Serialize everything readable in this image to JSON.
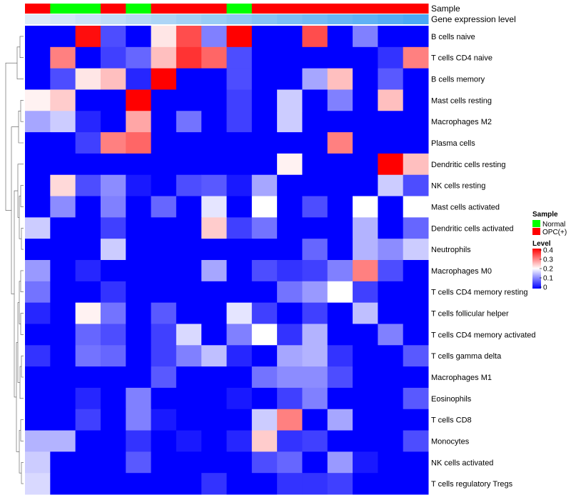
{
  "chart_data": {
    "type": "heatmap",
    "title": "",
    "annotation_labels": {
      "sample": "Sample",
      "expression": "Gene expression level"
    },
    "sample_groups": [
      "OPC(+)",
      "Normal",
      "Normal",
      "OPC(+)",
      "Normal",
      "OPC(+)",
      "OPC(+)",
      "OPC(+)",
      "Normal",
      "OPC(+)",
      "OPC(+)",
      "OPC(+)",
      "OPC(+)",
      "OPC(+)",
      "OPC(+)",
      "OPC(+)"
    ],
    "column_expression_level": [
      0.02,
      0.04,
      0.06,
      0.08,
      0.1,
      0.12,
      0.14,
      0.16,
      0.18,
      0.2,
      0.22,
      0.24,
      0.26,
      0.28,
      0.3,
      0.32
    ],
    "rows": [
      "B cells naive",
      "T cells CD4 naive",
      "B cells memory",
      "Mast cells resting",
      "Macrophages M2",
      "Plasma cells",
      "Dendritic cells resting",
      "NK cells resting",
      "Mast cells activated",
      "Dendritic cells activated",
      "Neutrophils",
      "Macrophages M0",
      "T cells CD4 memory resting",
      "T cells follicular helper",
      "T cells CD4 memory activated",
      "T cells gamma delta",
      "Macrophages M1",
      "Eosinophils",
      "T cells CD8",
      "Monocytes",
      "NK cells activated",
      "T cells regulatory  Tregs"
    ],
    "values": [
      [
        0,
        0,
        0.39,
        0.06,
        0,
        0.22,
        0.34,
        0.1,
        0.4,
        0,
        0,
        0.34,
        0,
        0.1,
        0,
        0
      ],
      [
        0,
        0.3,
        0,
        0.05,
        0.08,
        0.25,
        0.36,
        0.32,
        0.06,
        0,
        0,
        0,
        0,
        0,
        0.04,
        0.3
      ],
      [
        0,
        0.06,
        0.22,
        0.25,
        0.03,
        0.4,
        0,
        0,
        0.06,
        0,
        0,
        0.13,
        0.25,
        0,
        0.07,
        0
      ],
      [
        0.21,
        0.24,
        0,
        0,
        0.4,
        0,
        0,
        0,
        0.05,
        0,
        0.16,
        0,
        0.1,
        0,
        0.25,
        0
      ],
      [
        0.13,
        0.16,
        0.03,
        0,
        0.27,
        0,
        0.09,
        0,
        0.05,
        0,
        0.16,
        0,
        0,
        0,
        0,
        0
      ],
      [
        0,
        0,
        0.05,
        0.3,
        0.32,
        0,
        0,
        0,
        0,
        0,
        0,
        0,
        0.3,
        0,
        0,
        0
      ],
      [
        0,
        0,
        0,
        0,
        0,
        0,
        0,
        0,
        0,
        0,
        0.21,
        0,
        0,
        0,
        0.4,
        0.25
      ],
      [
        0,
        0.23,
        0.06,
        0.11,
        0.02,
        0,
        0.06,
        0.07,
        0.02,
        0.13,
        0,
        0,
        0,
        0,
        0.16,
        0.06
      ],
      [
        0,
        0.11,
        0,
        0.1,
        0,
        0.08,
        0,
        0.18,
        0,
        0.2,
        0,
        0.06,
        0,
        0.2,
        0,
        0.2
      ],
      [
        0.16,
        0,
        0,
        0.05,
        0,
        0,
        0,
        0.24,
        0.05,
        0.09,
        0,
        0,
        0,
        0.14,
        0,
        0.08
      ],
      [
        0,
        0,
        0,
        0.16,
        0,
        0,
        0,
        0,
        0,
        0,
        0,
        0.08,
        0,
        0.14,
        0.11,
        0.16
      ],
      [
        0.12,
        0,
        0.03,
        0,
        0,
        0,
        0,
        0.13,
        0,
        0.06,
        0.04,
        0.05,
        0.1,
        0.3,
        0.06,
        0
      ],
      [
        0.09,
        0,
        0,
        0.04,
        0,
        0,
        0,
        0,
        0,
        0,
        0.09,
        0.12,
        0.2,
        0.05,
        0,
        0
      ],
      [
        0.03,
        0,
        0.21,
        0.09,
        0,
        0.07,
        0,
        0,
        0.18,
        0.05,
        0,
        0.05,
        0,
        0.15,
        0,
        0
      ],
      [
        0,
        0,
        0.08,
        0.06,
        0,
        0.05,
        0.17,
        0,
        0.1,
        0.2,
        0.04,
        0.14,
        0,
        0,
        0.1,
        0
      ],
      [
        0.04,
        0,
        0.09,
        0.08,
        0,
        0.05,
        0.1,
        0.15,
        0.03,
        0,
        0.13,
        0.14,
        0.04,
        0,
        0,
        0.07
      ],
      [
        0,
        0,
        0,
        0,
        0,
        0.07,
        0,
        0,
        0,
        0.09,
        0.11,
        0.11,
        0.06,
        0,
        0,
        0
      ],
      [
        0,
        0,
        0.03,
        0,
        0.1,
        0,
        0,
        0,
        0.02,
        0,
        0.05,
        0.1,
        0,
        0,
        0,
        0.07
      ],
      [
        0,
        0,
        0.05,
        0,
        0.1,
        0.02,
        0,
        0,
        0,
        0.16,
        0.3,
        0,
        0.13,
        0,
        0,
        0
      ],
      [
        0.14,
        0.14,
        0,
        0,
        0.04,
        0,
        0.02,
        0,
        0.03,
        0.24,
        0.04,
        0.05,
        0,
        0,
        0,
        0.06
      ],
      [
        0.16,
        0,
        0,
        0,
        0.07,
        0,
        0,
        0,
        0,
        0.06,
        0.08,
        0,
        0.12,
        0.02,
        0,
        0
      ],
      [
        0.17,
        0,
        0,
        0,
        0,
        0,
        0,
        0.04,
        0,
        0,
        0.04,
        0.04,
        0.05,
        0,
        0,
        0
      ]
    ],
    "colors": {
      "low": "#0000ff",
      "mid": "#ffffff",
      "high": "#ff0000",
      "normal": "#00ff00",
      "opc": "#ff0000",
      "expr_low": "#deebf7",
      "expr_high": "#4ba8f5",
      "background": "#ffffff"
    },
    "legend": {
      "placement": "right",
      "sample_title": "Sample",
      "sample_entries": [
        {
          "label": "Normal",
          "color": "#00ff00"
        },
        {
          "label": "OPC(+)",
          "color": "#ff0000"
        }
      ],
      "level_title": "Level",
      "level_ticks": [
        "0.4",
        "0.3",
        "0.2",
        "0.1",
        "0"
      ],
      "level_range": [
        0,
        0.4
      ]
    },
    "row_dendrogram": true,
    "grid": false
  }
}
